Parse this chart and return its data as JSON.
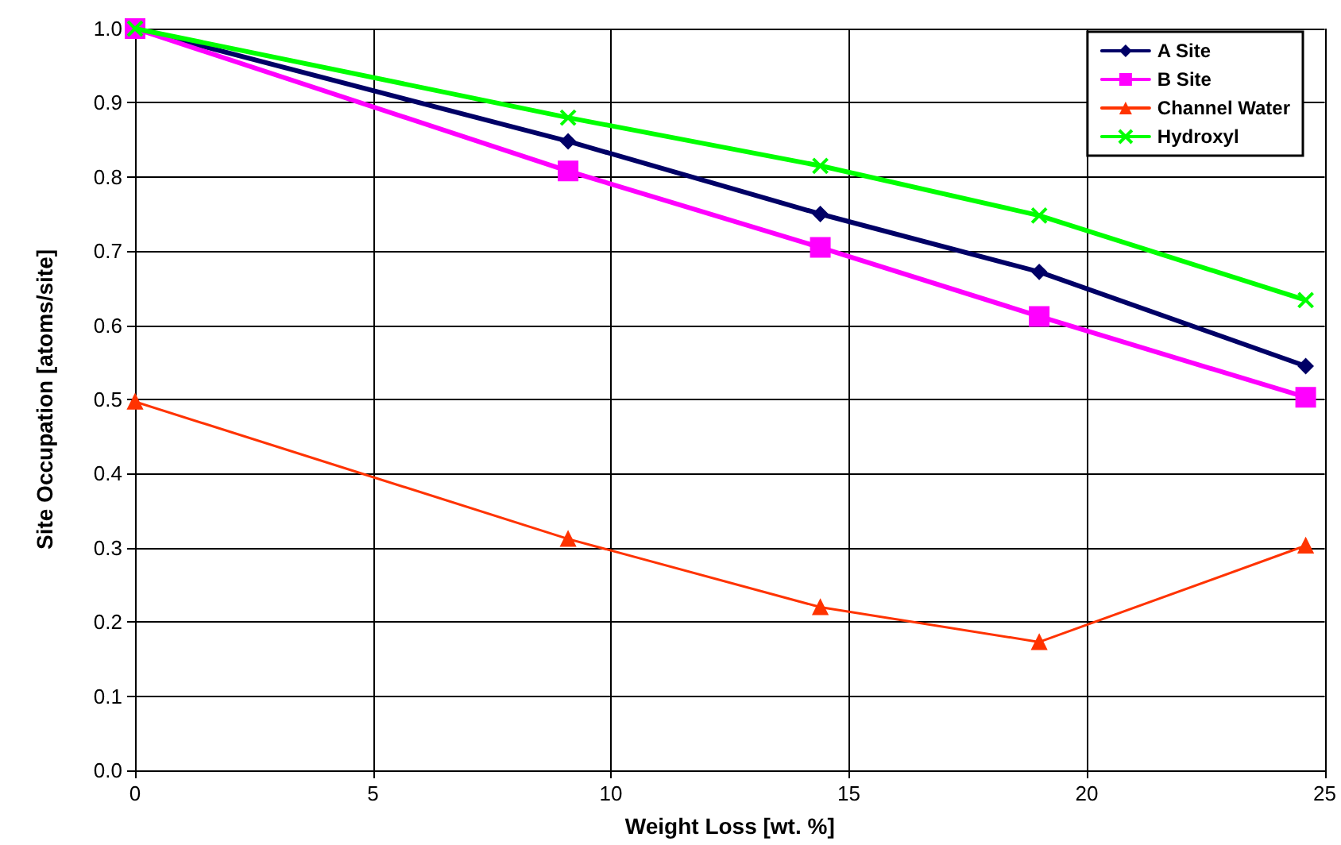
{
  "chart_data": {
    "type": "line",
    "xlabel": "Weight Loss [wt. %]",
    "ylabel": "Site Occupation [atoms/site]",
    "x": [
      0,
      9.1,
      14.4,
      19.0,
      24.6
    ],
    "series": [
      {
        "name": "A Site",
        "color": "#000066",
        "marker": "diamond",
        "values": [
          1.0,
          0.848,
          0.75,
          0.672,
          0.545
        ]
      },
      {
        "name": "B Site",
        "color": "#ff00ff",
        "marker": "square",
        "values": [
          1.0,
          0.808,
          0.705,
          0.612,
          0.503
        ]
      },
      {
        "name": "Channel Water",
        "color": "#ff3300",
        "marker": "triangle",
        "values": [
          0.497,
          0.312,
          0.22,
          0.173,
          0.303
        ]
      },
      {
        "name": "Hydroxyl",
        "color": "#00ff00",
        "marker": "cross",
        "values": [
          1.0,
          0.88,
          0.815,
          0.748,
          0.634
        ]
      }
    ],
    "xlim": [
      0,
      25
    ],
    "xticks": [
      0,
      5,
      10,
      15,
      20,
      25
    ],
    "ylim": [
      0,
      1.0
    ],
    "yticks": [
      {
        "value": 0,
        "label": "0.0"
      },
      0.1,
      0.2,
      0.3,
      0.4,
      0.5,
      0.6,
      0.7,
      0.8,
      0.9,
      {
        "value": 1,
        "label": "1.0"
      }
    ],
    "grid": true,
    "legend": "top right"
  }
}
